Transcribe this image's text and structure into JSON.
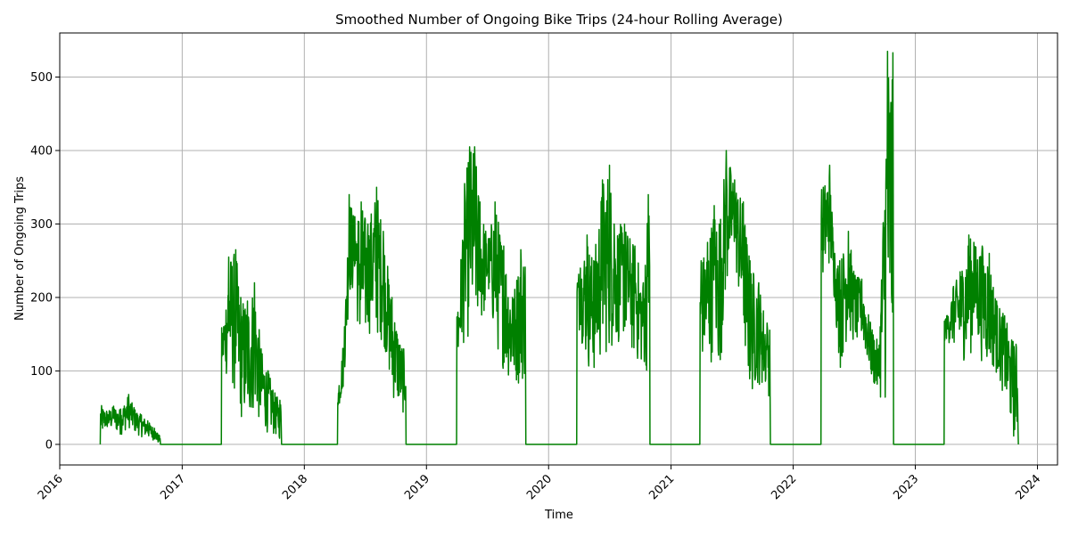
{
  "chart_data": {
    "type": "line",
    "title": "Smoothed Number of Ongoing Bike Trips (24-hour Rolling Average)",
    "xlabel": "Time",
    "ylabel": "Number of Ongoing Trips",
    "x_ticks": [
      "2016",
      "2017",
      "2018",
      "2019",
      "2020",
      "2021",
      "2022",
      "2023",
      "2024"
    ],
    "y_ticks": [
      0,
      100,
      200,
      300,
      400,
      500
    ],
    "xlim": [
      "2016-01-01",
      "2024-03-01"
    ],
    "ylim": [
      -28,
      560
    ],
    "grid": true,
    "series": [
      {
        "color": "#008000",
        "seasons": [
          {
            "start": "2016-05-01",
            "peak_dates": [
              "2016-05-01",
              "2016-05-20",
              "2016-06-10",
              "2016-07-01",
              "2016-07-25",
              "2016-08-10",
              "2016-09-01",
              "2016-09-20",
              "2016-10-10",
              "2016-10-25"
            ],
            "peak_values": [
              55,
              45,
              52,
              48,
              68,
              50,
              40,
              32,
              22,
              12
            ],
            "trough_values": [
              8,
              20,
              18,
              12,
              22,
              15,
              10,
              8,
              5,
              0
            ],
            "end": "2016-10-28"
          },
          {
            "start": "2017-04-28",
            "peak_dates": [
              "2017-05-05",
              "2017-05-20",
              "2017-06-10",
              "2017-06-25",
              "2017-07-15",
              "2017-08-05",
              "2017-08-25",
              "2017-09-15",
              "2017-10-05",
              "2017-10-20"
            ],
            "peak_values": [
              160,
              255,
              265,
              200,
              195,
              220,
              130,
              100,
              70,
              60
            ],
            "trough_values": [
              100,
              80,
              60,
              30,
              20,
              40,
              20,
              15,
              10,
              5
            ],
            "end": "2017-10-25"
          },
          {
            "start": "2018-04-10",
            "peak_dates": [
              "2018-04-15",
              "2018-05-01",
              "2018-05-15",
              "2018-06-01",
              "2018-06-20",
              "2018-07-10",
              "2018-08-05",
              "2018-08-25",
              "2018-09-20",
              "2018-10-20"
            ],
            "peak_values": [
              80,
              160,
              340,
              310,
              330,
              300,
              350,
              290,
              200,
              130
            ],
            "trough_values": [
              50,
              80,
              200,
              200,
              100,
              150,
              140,
              140,
              60,
              40
            ],
            "end": "2018-11-01"
          },
          {
            "start": "2019-04-01",
            "peak_dates": [
              "2019-04-05",
              "2019-04-25",
              "2019-05-10",
              "2019-05-25",
              "2019-06-10",
              "2019-07-05",
              "2019-07-25",
              "2019-08-20",
              "2019-09-15",
              "2019-10-10"
            ],
            "peak_values": [
              180,
              355,
              405,
              405,
              330,
              280,
              330,
              270,
              200,
              265
            ],
            "trough_values": [
              100,
              140,
              140,
              150,
              140,
              200,
              130,
              100,
              75,
              80
            ],
            "end": "2019-10-25"
          },
          {
            "start": "2020-03-25",
            "peak_dates": [
              "2020-04-05",
              "2020-04-25",
              "2020-05-15",
              "2020-06-10",
              "2020-07-01",
              "2020-07-15",
              "2020-08-15",
              "2020-09-15",
              "2020-10-10",
              "2020-10-25"
            ],
            "peak_values": [
              240,
              285,
              250,
              360,
              380,
              300,
              300,
              270,
              220,
              340
            ],
            "trough_values": [
              150,
              100,
              90,
              110,
              120,
              130,
              140,
              110,
              100,
              95
            ],
            "end": "2020-10-30"
          },
          {
            "start": "2021-03-28",
            "peak_dates": [
              "2021-04-01",
              "2021-04-20",
              "2021-05-10",
              "2021-05-25",
              "2021-06-15",
              "2021-07-10",
              "2021-08-05",
              "2021-08-25",
              "2021-09-20",
              "2021-10-15"
            ],
            "peak_values": [
              250,
              275,
              325,
              300,
              400,
              360,
              330,
              250,
              220,
              165
            ],
            "trough_values": [
              110,
              100,
              120,
              85,
              200,
              250,
              130,
              60,
              80,
              65
            ],
            "end": "2021-10-25"
          },
          {
            "start": "2022-03-25",
            "peak_dates": [
              "2022-04-01",
              "2022-04-20",
              "2022-05-05",
              "2022-05-20",
              "2022-06-15",
              "2022-07-05",
              "2022-07-25",
              "2022-08-20",
              "2022-09-15",
              "2022-10-10"
            ],
            "peak_values": [
              350,
              380,
              260,
              250,
              290,
              230,
              225,
              165,
              135,
              535
            ],
            "trough_values": [
              220,
              240,
              190,
              95,
              150,
              130,
              140,
              90,
              55,
              48
            ],
            "end": "2022-10-28"
          },
          {
            "start": "2023-03-28",
            "peak_dates": [
              "2023-04-05",
              "2023-04-25",
              "2023-05-15",
              "2023-06-10",
              "2023-06-25",
              "2023-07-20",
              "2023-08-10",
              "2023-09-01",
              "2023-09-25",
              "2023-10-20"
            ],
            "peak_values": [
              175,
              215,
              235,
              285,
              275,
              270,
              260,
              195,
              175,
              140
            ],
            "trough_values": [
              140,
              130,
              115,
              110,
              140,
              110,
              100,
              95,
              60,
              5
            ],
            "end": "2023-11-05"
          }
        ]
      }
    ]
  }
}
